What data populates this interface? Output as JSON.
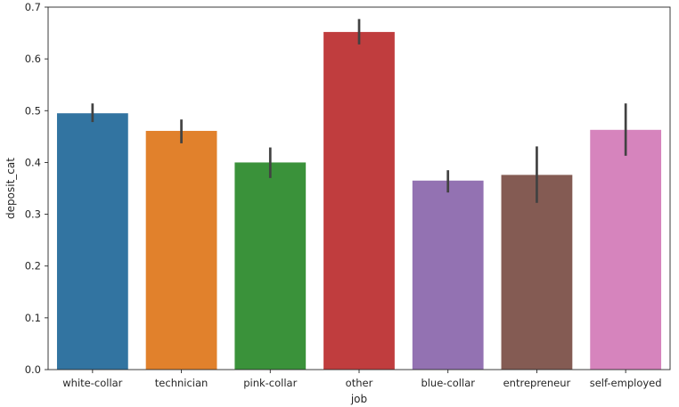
{
  "chart_data": {
    "type": "bar",
    "title": "",
    "xlabel": "job",
    "ylabel": "deposit_cat",
    "ylim": [
      0,
      0.7
    ],
    "yticks": [
      0.0,
      0.1,
      0.2,
      0.3,
      0.4,
      0.5,
      0.6,
      0.7
    ],
    "ytick_labels": [
      "0.0",
      "0.1",
      "0.2",
      "0.3",
      "0.4",
      "0.5",
      "0.6",
      "0.7"
    ],
    "grid": false,
    "categories": [
      "white-collar",
      "technician",
      "pink-collar",
      "other",
      "blue-collar",
      "entrepreneur",
      "self-employed"
    ],
    "values": [
      0.495,
      0.461,
      0.4,
      0.652,
      0.365,
      0.376,
      0.463
    ],
    "error_low": [
      0.478,
      0.437,
      0.37,
      0.628,
      0.342,
      0.322,
      0.413
    ],
    "error_high": [
      0.514,
      0.483,
      0.429,
      0.677,
      0.385,
      0.431,
      0.514
    ],
    "colors": [
      "#3274a1",
      "#e1812c",
      "#3a923a",
      "#c03d3e",
      "#9372b2",
      "#845b53",
      "#d684bd"
    ],
    "errorbar_color": "#424242"
  }
}
